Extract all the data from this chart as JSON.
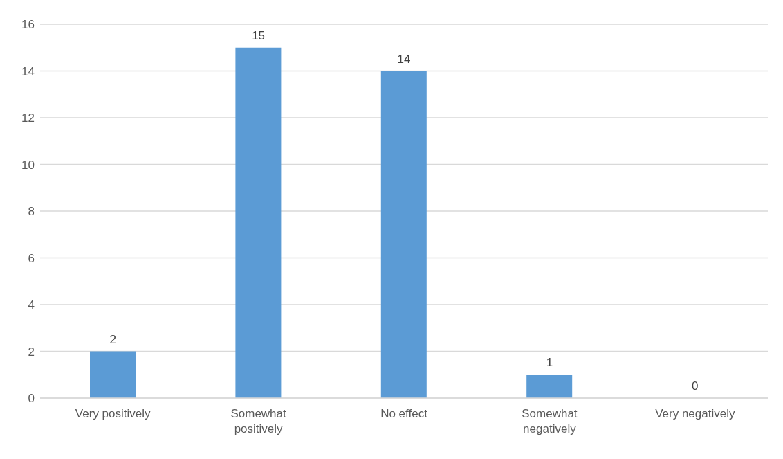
{
  "chart_data": {
    "type": "bar",
    "categories": [
      "Very positively",
      "Somewhat positively",
      "No effect",
      "Somewhat negatively",
      "Very negatively"
    ],
    "values": [
      2,
      15,
      14,
      1,
      0
    ],
    "color": "#5b9bd5",
    "ylim": [
      0,
      16
    ],
    "yticks": [
      0,
      2,
      4,
      6,
      8,
      10,
      12,
      14,
      16
    ],
    "grid": "y",
    "data_labels": true
  }
}
